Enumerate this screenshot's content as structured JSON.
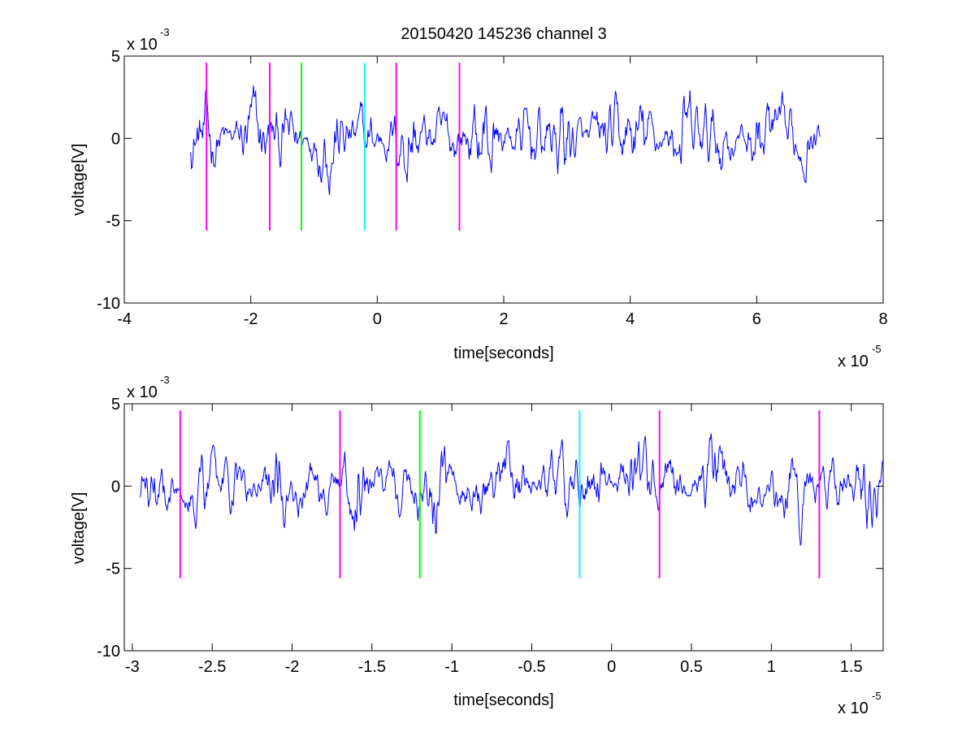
{
  "title": "20150420 145236 channel 3",
  "chart_data": [
    {
      "type": "line",
      "xlabel": "time[seconds]",
      "ylabel": "voltage[V]",
      "x_exponent_label": "x 10",
      "x_exponent": "-5",
      "y_exponent_label": "x 10",
      "y_exponent": "-3",
      "xlim": [
        -4,
        8
      ],
      "ylim": [
        -10,
        5
      ],
      "xticks": [
        -4,
        -2,
        0,
        2,
        4,
        6,
        8
      ],
      "xtick_labels": [
        "-4",
        "-2",
        "0",
        "2",
        "4",
        "6",
        "8"
      ],
      "yticks": [
        -10,
        -5,
        0,
        5
      ],
      "ytick_labels": [
        "-10",
        "-5",
        "0",
        "5"
      ],
      "series": [
        {
          "color": "#0000ff",
          "x_start": -2.95,
          "x_end": 7.0,
          "noise_amplitude": 1.6
        }
      ],
      "markers": [
        {
          "x": -2.7,
          "y_range": [
            -5.6,
            4.6
          ],
          "color": "#ff00ff"
        },
        {
          "x": -1.7,
          "y_range": [
            -5.6,
            4.6
          ],
          "color": "#ff00ff"
        },
        {
          "x": -1.2,
          "y_range": [
            -5.6,
            4.6
          ],
          "color": "#00ff00"
        },
        {
          "x": -0.2,
          "y_range": [
            -5.6,
            4.6
          ],
          "color": "#00ffff"
        },
        {
          "x": 0.3,
          "y_range": [
            -5.6,
            4.6
          ],
          "color": "#ff00ff"
        },
        {
          "x": 1.3,
          "y_range": [
            -5.6,
            4.6
          ],
          "color": "#ff00ff"
        }
      ]
    },
    {
      "type": "line",
      "xlabel": "time[seconds]",
      "ylabel": "voltage[V]",
      "x_exponent_label": "x 10",
      "x_exponent": "-5",
      "y_exponent_label": "x 10",
      "y_exponent": "-3",
      "xlim": [
        -3.05,
        1.7
      ],
      "ylim": [
        -10,
        5
      ],
      "xticks": [
        -3,
        -2.5,
        -2,
        -1.5,
        -1,
        -0.5,
        0,
        0.5,
        1,
        1.5
      ],
      "xtick_labels": [
        "-3",
        "-2.5",
        "-2",
        "-1.5",
        "-1",
        "-0.5",
        "0",
        "0.5",
        "1",
        "1.5"
      ],
      "yticks": [
        -10,
        -5,
        0,
        5
      ],
      "ytick_labels": [
        "-10",
        "-5",
        "0",
        "5"
      ],
      "series": [
        {
          "color": "#0000ff",
          "x_start": -2.95,
          "x_end": 1.7,
          "noise_amplitude": 1.4
        }
      ],
      "markers": [
        {
          "x": -2.7,
          "y_range": [
            -5.6,
            4.6
          ],
          "color": "#ff00ff"
        },
        {
          "x": -1.7,
          "y_range": [
            -5.6,
            4.6
          ],
          "color": "#ff00ff"
        },
        {
          "x": -1.2,
          "y_range": [
            -5.6,
            4.6
          ],
          "color": "#00ff00"
        },
        {
          "x": -0.2,
          "y_range": [
            -5.6,
            4.6
          ],
          "color": "#00ffff"
        },
        {
          "x": 0.3,
          "y_range": [
            -5.6,
            4.6
          ],
          "color": "#ff00ff"
        },
        {
          "x": 1.3,
          "y_range": [
            -5.6,
            4.6
          ],
          "color": "#ff00ff"
        }
      ]
    }
  ]
}
